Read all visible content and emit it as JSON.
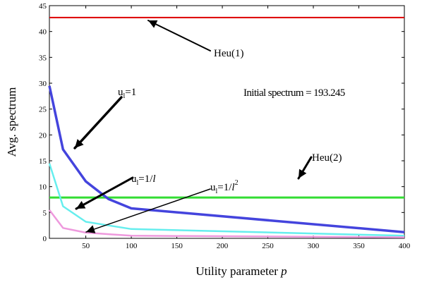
{
  "chart_data": {
    "type": "line",
    "xlabel": "Utility parameter",
    "xlabel_var": "p",
    "ylabel": "Avg. spectrum",
    "xlim": [
      10,
      400
    ],
    "ylim": [
      0,
      45
    ],
    "xticks": [
      50,
      100,
      150,
      200,
      250,
      300,
      350,
      400
    ],
    "yticks": [
      0,
      5,
      10,
      15,
      20,
      25,
      30,
      35,
      40,
      45
    ],
    "grid": false,
    "legend": "none",
    "series": [
      {
        "color": "#dd0000",
        "x": [
          10,
          400
        ],
        "values": [
          42.7,
          42.7
        ]
      },
      {
        "color": "#33dd33",
        "x": [
          10,
          400
        ],
        "values": [
          7.9,
          7.9
        ]
      },
      {
        "color": "#4444dd",
        "x": [
          10,
          25,
          50,
          75,
          100,
          400
        ],
        "values": [
          29.5,
          17.2,
          11.0,
          7.6,
          5.8,
          1.2
        ]
      },
      {
        "color": "#66eeee",
        "x": [
          10,
          25,
          50,
          75,
          100,
          400
        ],
        "values": [
          14.5,
          6.2,
          3.2,
          2.5,
          1.8,
          0.5
        ]
      },
      {
        "color": "#ee99dd",
        "x": [
          10,
          25,
          50,
          75,
          100,
          400
        ],
        "values": [
          5.5,
          2.0,
          1.1,
          0.8,
          0.5,
          0.2
        ]
      }
    ],
    "annotations": {
      "heu1": "Heu(1)",
      "heu2": "Heu(2)",
      "u1_base": "u",
      "u1_sub": "l",
      "u1_rest": "=1",
      "u2_base": "u",
      "u2_sub": "l",
      "u2_rest": "=1/",
      "u2_var": "l",
      "u3_base": "u",
      "u3_sub": "l",
      "u3_rest": "=1/",
      "u3_var": "l",
      "u3_sup": "2",
      "initial": "Initial spectrum = 193.245"
    }
  }
}
